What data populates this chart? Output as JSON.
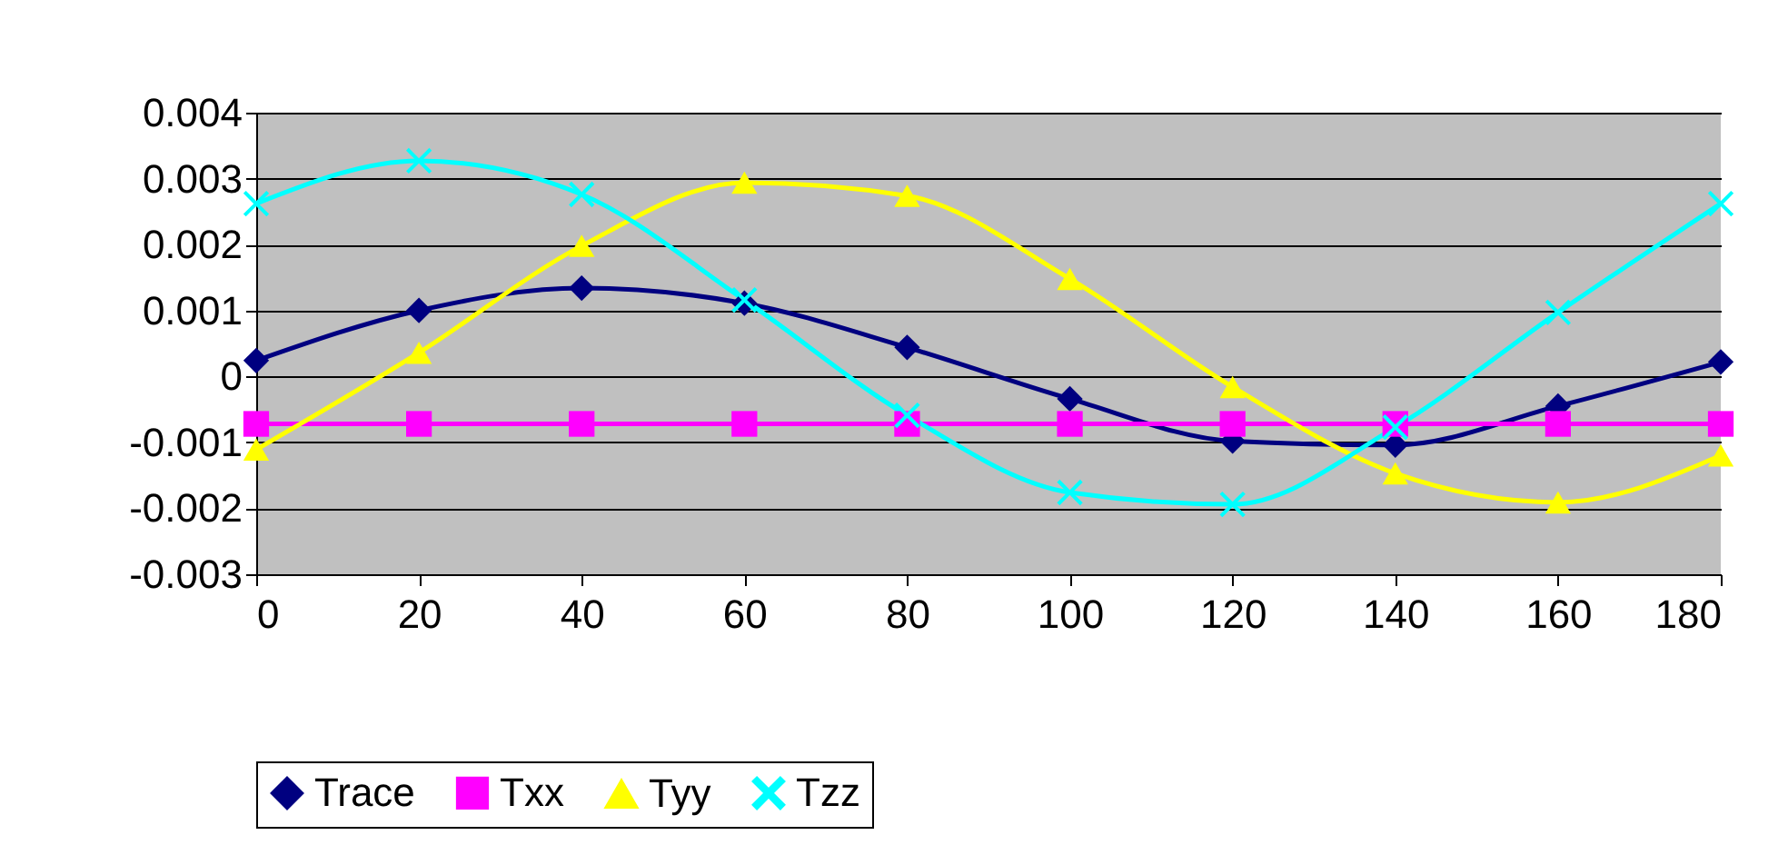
{
  "chart_data": {
    "type": "line",
    "x": [
      0,
      20,
      40,
      60,
      80,
      100,
      120,
      140,
      160,
      180
    ],
    "series": [
      {
        "name": "Trace",
        "color": "#000080",
        "marker": "diamond",
        "values": [
          0.00024,
          0.001,
          0.00134,
          0.00111,
          0.00044,
          -0.00034,
          -0.00098,
          -0.00104,
          -0.00045,
          0.00022
        ]
      },
      {
        "name": "Txx",
        "color": "#ff00ff",
        "marker": "square",
        "values": [
          -0.00072,
          -0.00072,
          -0.00072,
          -0.00072,
          -0.00072,
          -0.00072,
          -0.00072,
          -0.00072,
          -0.00072,
          -0.00072
        ]
      },
      {
        "name": "Tyy",
        "color": "#ffff00",
        "marker": "triangle",
        "values": [
          -0.00111,
          0.00036,
          0.00198,
          0.00294,
          0.00274,
          0.00148,
          -0.00016,
          -0.00147,
          -0.00191,
          -0.0012
        ]
      },
      {
        "name": "Tzz",
        "color": "#00ffff",
        "marker": "cross",
        "values": [
          0.00262,
          0.00327,
          0.00276,
          0.00116,
          -0.00059,
          -0.00176,
          -0.00194,
          -0.00077,
          0.00097,
          0.00262
        ]
      }
    ],
    "xlim": [
      0,
      180
    ],
    "xticks": [
      0,
      20,
      40,
      60,
      80,
      100,
      120,
      140,
      160,
      180
    ],
    "ylim": [
      -0.003,
      0.004
    ],
    "yticks": [
      -0.003,
      -0.002,
      -0.001,
      0,
      0.001,
      0.002,
      0.003,
      0.004
    ],
    "grid": "y",
    "legend": "bottom"
  }
}
